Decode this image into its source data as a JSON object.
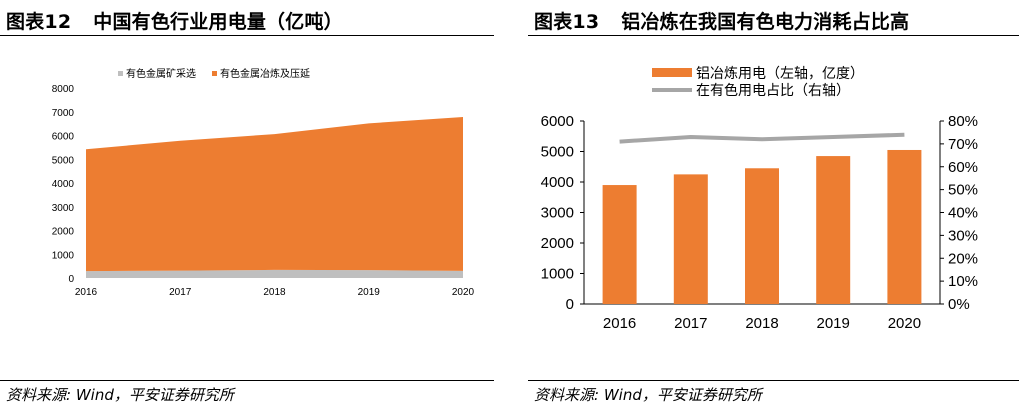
{
  "left_panel": {
    "figure_number": "图表12",
    "figure_title": "中国有色行业用电量（亿吨）",
    "source": "资料来源: Wind，平安证券研究所"
  },
  "right_panel": {
    "figure_number": "图表13",
    "figure_title": "铝冶炼在我国有色电力消耗占比高",
    "source": "资料来源: Wind，平安证券研究所"
  },
  "chart_data": [
    {
      "type": "area",
      "stacked": true,
      "categories": [
        "2016",
        "2017",
        "2018",
        "2019",
        "2020"
      ],
      "series": [
        {
          "name": "有色金属矿采选",
          "values": [
            290,
            310,
            340,
            330,
            300
          ],
          "color": "#BFBFBF"
        },
        {
          "name": "有色金属冶炼及压延",
          "values": [
            5130,
            5470,
            5720,
            6180,
            6480
          ],
          "color": "#ED7D31"
        }
      ],
      "ylim": [
        0,
        8000
      ],
      "yticks": [
        "0",
        "1000",
        "2000",
        "3000",
        "4000",
        "5000",
        "6000",
        "7000",
        "8000"
      ],
      "legend_position": "top",
      "grid": false
    },
    {
      "type": "bar+line",
      "categories": [
        "2016",
        "2017",
        "2018",
        "2019",
        "2020"
      ],
      "series": [
        {
          "name": "铝冶炼用电（左轴，亿度）",
          "chart": "bar",
          "axis": "left",
          "values": [
            3900,
            4250,
            4450,
            4850,
            5050
          ],
          "color": "#ED7D31"
        },
        {
          "name": "在有色用电占比（右轴）",
          "chart": "line",
          "axis": "right",
          "values": [
            0.71,
            0.73,
            0.72,
            0.73,
            0.74
          ],
          "color": "#A6A6A6"
        }
      ],
      "ylim_left": [
        0,
        6000
      ],
      "yticks_left": [
        "0",
        "1000",
        "2000",
        "3000",
        "4000",
        "5000",
        "6000"
      ],
      "ylim_right": [
        0,
        0.8
      ],
      "yticks_right": [
        "0%",
        "10%",
        "20%",
        "30%",
        "40%",
        "50%",
        "60%",
        "70%",
        "80%"
      ],
      "legend_position": "top",
      "grid": false
    }
  ]
}
